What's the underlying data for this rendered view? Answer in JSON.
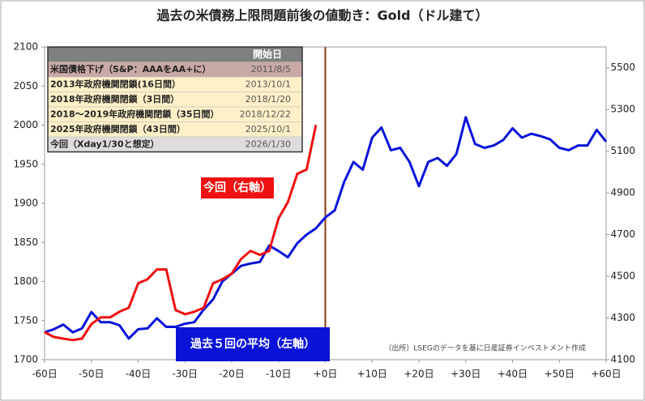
{
  "chart_data": {
    "type": "line",
    "title": "過去の米債務上限問題前後の値動き：Gold（ドル建て）",
    "x": [
      -60,
      -58,
      -56,
      -54,
      -52,
      -50,
      -48,
      -46,
      -44,
      -42,
      -40,
      -38,
      -36,
      -34,
      -32,
      -30,
      -28,
      -26,
      -24,
      -22,
      -20,
      -18,
      -16,
      -14,
      -12,
      -10,
      -8,
      -6,
      -4,
      -2,
      0,
      2,
      4,
      6,
      8,
      10,
      12,
      14,
      16,
      18,
      20,
      22,
      24,
      26,
      28,
      30,
      32,
      34,
      36,
      38,
      40,
      42,
      44,
      46,
      48,
      50,
      52,
      54,
      56,
      58,
      60
    ],
    "series": [
      {
        "name": "過去５回の平均（左軸）",
        "color": "#0a14d8",
        "axis": "y",
        "values": [
          1735,
          1739,
          1745,
          1735,
          1740,
          1761,
          1748,
          1748,
          1744,
          1727,
          1739,
          1740,
          1753,
          1742,
          1742,
          1746,
          1748,
          1764,
          1777,
          1800,
          1810,
          1820,
          1823,
          1825,
          1846,
          1839,
          1831,
          1849,
          1860,
          1868,
          1882,
          1891,
          1927,
          1953,
          1943,
          1984,
          1997,
          1968,
          1971,
          1953,
          1922,
          1953,
          1958,
          1948,
          1963,
          2010,
          1976,
          1971,
          1974,
          1981,
          1996,
          1984,
          1989,
          1986,
          1982,
          1971,
          1968,
          1974,
          1974,
          1994,
          1979
        ]
      },
      {
        "name": "今回（右軸）",
        "color": "#ee1111",
        "axis": "y2",
        "values": [
          4232,
          4209,
          4201,
          4194,
          4201,
          4271,
          4303,
          4303,
          4330,
          4349,
          4466,
          4486,
          4533,
          4533,
          4338,
          4318,
          4330,
          4349,
          4466,
          4486,
          4513,
          4583,
          4622,
          4603,
          4622,
          4778,
          4856,
          4992,
          5012,
          5226,
          null,
          null,
          null,
          null,
          null,
          null,
          null,
          null,
          null,
          null,
          null,
          null,
          null,
          null,
          null,
          null,
          null,
          null,
          null,
          null,
          null,
          null,
          null,
          null,
          null,
          null,
          null,
          null,
          null,
          null,
          null
        ]
      }
    ],
    "xlim": [
      -60,
      60
    ],
    "xticks": [
      {
        "value": -60,
        "label": "-60日"
      },
      {
        "value": -50,
        "label": "-50日"
      },
      {
        "value": -40,
        "label": "-40日"
      },
      {
        "value": -30,
        "label": "-30日"
      },
      {
        "value": -20,
        "label": "-20日"
      },
      {
        "value": -10,
        "label": "-10日"
      },
      {
        "value": 0,
        "label": "+0日"
      },
      {
        "value": 10,
        "label": "+10日"
      },
      {
        "value": 20,
        "label": "+20日"
      },
      {
        "value": 30,
        "label": "+30日"
      },
      {
        "value": 40,
        "label": "+40日"
      },
      {
        "value": 50,
        "label": "+50日"
      },
      {
        "value": 60,
        "label": "+60日"
      }
    ],
    "ylim": [
      1700,
      2100
    ],
    "yticks": [
      1700,
      1750,
      1800,
      1850,
      1900,
      1950,
      2000,
      2050,
      2100
    ],
    "y2lim": [
      4100,
      5600
    ],
    "y2ticks": [
      4100,
      4300,
      4500,
      4700,
      4900,
      5100,
      5300,
      5500
    ],
    "vline": 0,
    "vline_color": "#8b3a1a",
    "source": "（出所）LSEGのデータを基に日産証券インベストメント作成",
    "table": {
      "header": "開始日",
      "rows": [
        [
          "米国債格下げ（S&P：AAAをAA+に）",
          "2011/8/5"
        ],
        [
          "2013年政府機関閉鎖(16日間）",
          "2013/10/1"
        ],
        [
          "2018年政府機関閉鎖（3日間）",
          "2018/1/20"
        ],
        [
          "2018～2019年政府機関閉鎖（35日間）",
          "2018/12/22"
        ],
        [
          "2025年政府機関閉鎖（43日間）",
          "2025/10/1"
        ],
        [
          "今回（Xday1/30と想定）",
          "2026/1/30"
        ]
      ]
    }
  }
}
